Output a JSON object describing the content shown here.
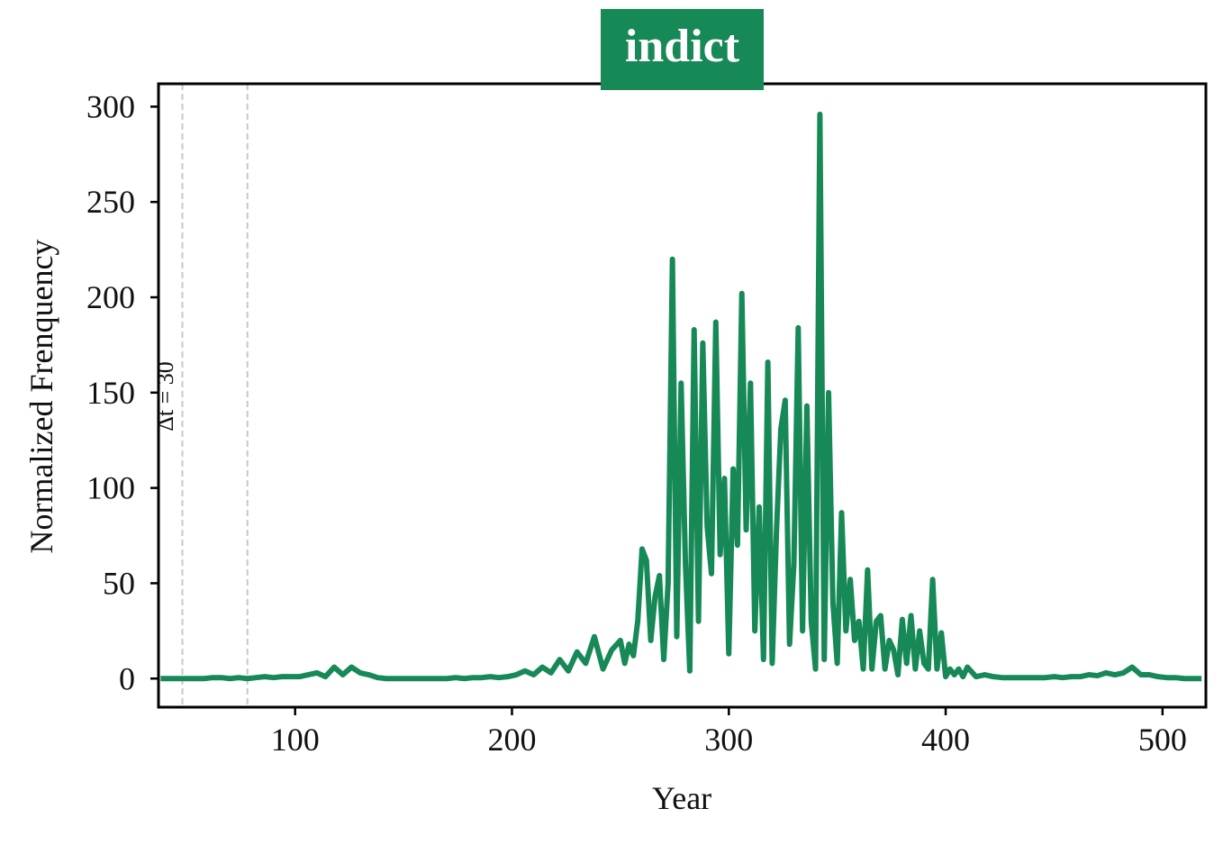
{
  "chart_data": {
    "type": "line",
    "title": "indict",
    "xlabel": "Year",
    "ylabel": "Normalized Frenquency",
    "annotation": "Δt = 30",
    "vlines": [
      48,
      78
    ],
    "color": "#168957",
    "xlim": [
      37,
      520
    ],
    "ylim": [
      -15,
      312
    ],
    "xticks": [
      100,
      200,
      300,
      400,
      500
    ],
    "yticks": [
      0,
      50,
      100,
      150,
      200,
      250,
      300
    ],
    "x": [
      38,
      42,
      46,
      50,
      54,
      58,
      62,
      66,
      70,
      74,
      78,
      82,
      86,
      90,
      94,
      98,
      102,
      106,
      110,
      114,
      118,
      122,
      126,
      130,
      134,
      138,
      142,
      146,
      150,
      154,
      158,
      162,
      166,
      170,
      174,
      178,
      182,
      186,
      190,
      194,
      198,
      202,
      206,
      210,
      214,
      218,
      222,
      226,
      230,
      234,
      238,
      242,
      246,
      250,
      252,
      254,
      256,
      258,
      260,
      262,
      264,
      266,
      268,
      270,
      272,
      274,
      276,
      278,
      280,
      282,
      284,
      286,
      288,
      290,
      292,
      294,
      296,
      298,
      300,
      302,
      304,
      306,
      308,
      310,
      312,
      314,
      316,
      318,
      320,
      322,
      324,
      326,
      328,
      330,
      332,
      334,
      336,
      338,
      340,
      342,
      344,
      346,
      348,
      350,
      352,
      354,
      356,
      358,
      360,
      362,
      364,
      366,
      368,
      370,
      372,
      374,
      376,
      378,
      380,
      382,
      384,
      386,
      388,
      390,
      392,
      394,
      396,
      398,
      400,
      402,
      404,
      406,
      408,
      410,
      414,
      418,
      422,
      426,
      430,
      434,
      438,
      442,
      446,
      450,
      454,
      458,
      462,
      466,
      470,
      474,
      478,
      482,
      486,
      490,
      494,
      498,
      502,
      506,
      510,
      514,
      518
    ],
    "values": [
      0,
      0,
      0,
      0,
      0,
      0,
      0.5,
      0.5,
      0,
      0.5,
      0,
      0.5,
      1,
      0.5,
      1,
      1,
      1,
      2,
      3,
      1,
      6,
      2,
      6,
      3,
      2,
      0.5,
      0,
      0,
      0,
      0,
      0,
      0,
      0,
      0,
      0.5,
      0,
      0.5,
      0.5,
      1,
      0.5,
      1,
      2,
      4,
      2,
      6,
      3,
      10,
      4,
      14,
      8,
      22,
      5,
      15,
      20,
      8,
      18,
      12,
      30,
      68,
      62,
      20,
      43,
      54,
      10,
      50,
      220,
      22,
      155,
      60,
      4,
      183,
      30,
      176,
      80,
      55,
      187,
      65,
      105,
      13,
      110,
      70,
      202,
      78,
      155,
      25,
      90,
      10,
      166,
      8,
      78,
      131,
      146,
      18,
      60,
      184,
      25,
      143,
      30,
      5,
      296,
      10,
      150,
      40,
      8,
      87,
      25,
      52,
      20,
      30,
      5,
      57,
      5,
      30,
      33,
      5,
      20,
      15,
      2,
      31,
      8,
      33,
      5,
      25,
      8,
      5,
      52,
      5,
      24,
      1,
      5,
      2,
      5,
      1,
      6,
      1,
      2,
      1,
      0.5,
      0.5,
      0.5,
      0.5,
      0.5,
      0.5,
      1,
      0.5,
      1,
      1,
      2,
      1.5,
      3,
      2,
      3,
      6,
      2,
      2,
      1,
      0.5,
      0.5,
      0,
      0,
      0
    ]
  }
}
